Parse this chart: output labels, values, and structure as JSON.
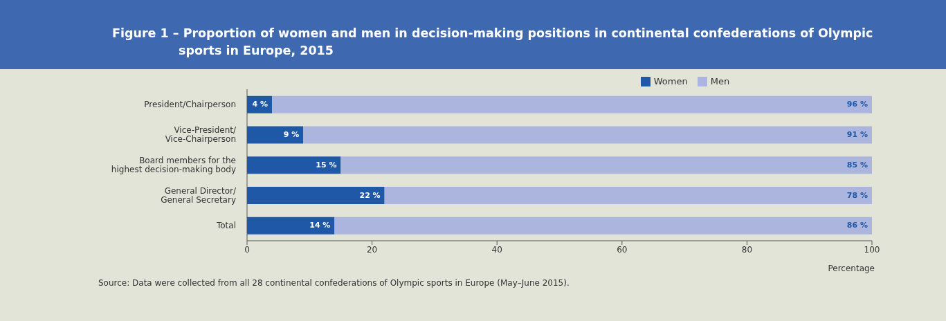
{
  "chart_data": {
    "type": "bar",
    "orientation": "horizontal",
    "stacked": true,
    "title": "Figure 1 – Proportion of women and men in decision-making positions in continental confederations of Olympic sports in Europe, 2015",
    "xlabel": "Percentage",
    "categories": [
      "President/Chairperson",
      "Vice-President/ Vice-Chairperson",
      "Board members for the highest decision-making body",
      "General Director/ General Secretary",
      "Total"
    ],
    "series": [
      {
        "name": "Women",
        "color": "#1f58a6",
        "values": [
          4,
          9,
          15,
          22,
          14
        ],
        "value_labels": [
          "4 %",
          "9 %",
          "15 %",
          "22 %",
          "14 %"
        ]
      },
      {
        "name": "Men",
        "color": "#abb5de",
        "values": [
          96,
          91,
          85,
          78,
          86
        ],
        "value_labels": [
          "96 %",
          "91 %",
          "85 %",
          "78 %",
          "86 %"
        ]
      }
    ],
    "xlim": [
      0,
      100
    ],
    "xticks": [
      0,
      20,
      40,
      60,
      80,
      100
    ],
    "legend": "top",
    "grid": false,
    "annotations": [
      "Source: Data were collected from all 28 continental confederations of Olympic sports in Europe (May–June 2015)."
    ]
  }
}
